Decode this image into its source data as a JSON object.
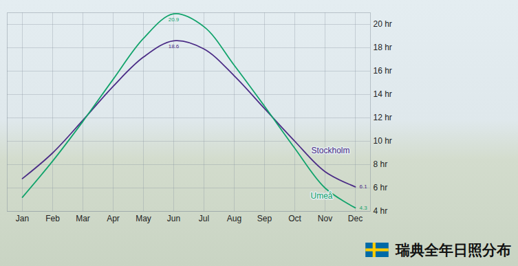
{
  "chart_data": {
    "type": "line",
    "title": "瑞典全年日照分布",
    "categories": [
      "Jan",
      "Feb",
      "Mar",
      "Apr",
      "May",
      "Jun",
      "Jul",
      "Aug",
      "Sep",
      "Oct",
      "Nov",
      "Dec"
    ],
    "series": [
      {
        "name": "Stockholm",
        "color": "#4b2c86",
        "values": [
          6.8,
          9.0,
          11.8,
          14.7,
          17.2,
          18.6,
          17.9,
          15.6,
          12.8,
          10.0,
          7.4,
          6.1
        ],
        "value_labels": [
          null,
          null,
          null,
          null,
          null,
          "18.6",
          null,
          null,
          null,
          null,
          null,
          "6.1"
        ]
      },
      {
        "name": "Umeå",
        "color": "#11a36b",
        "values": [
          5.2,
          8.3,
          11.7,
          15.3,
          18.8,
          20.9,
          19.8,
          16.5,
          13.0,
          9.4,
          6.0,
          4.3
        ],
        "value_labels": [
          null,
          null,
          null,
          null,
          null,
          "20.9",
          null,
          null,
          null,
          null,
          null,
          "4.3"
        ]
      }
    ],
    "ylim": [
      4,
      21
    ],
    "yticks": [
      {
        "value": 4,
        "label": "4 hr"
      },
      {
        "value": 6,
        "label": "6 hr"
      },
      {
        "value": 8,
        "label": "8 hr"
      },
      {
        "value": 10,
        "label": "10 hr"
      },
      {
        "value": 12,
        "label": "12 hr"
      },
      {
        "value": 14,
        "label": "14 hr"
      },
      {
        "value": 16,
        "label": "16 hr"
      },
      {
        "value": 18,
        "label": "18 hr"
      },
      {
        "value": 20,
        "label": "20 hr"
      }
    ],
    "grid": true
  }
}
